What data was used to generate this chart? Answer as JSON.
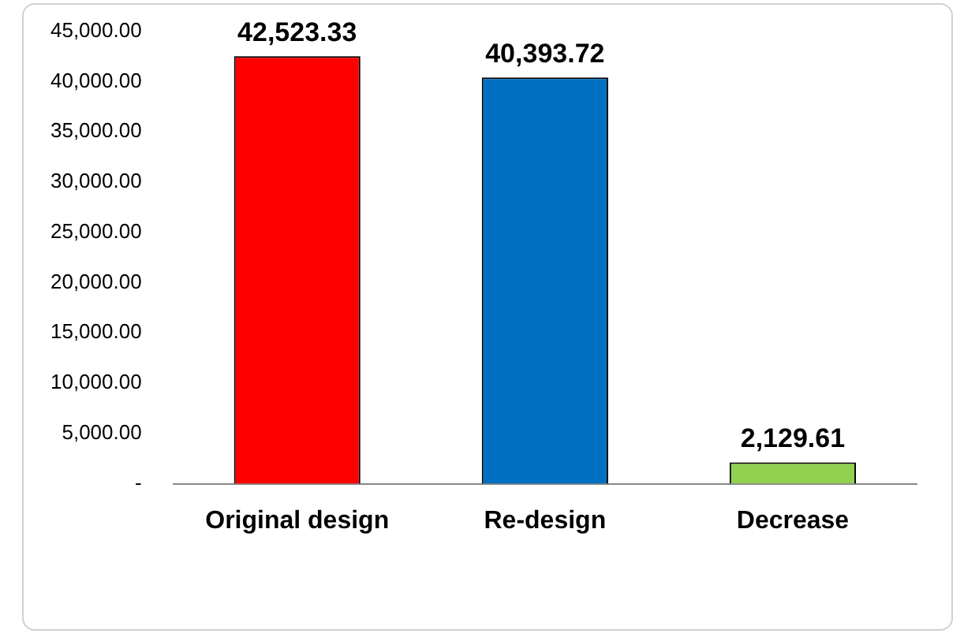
{
  "chart_data": {
    "type": "bar",
    "categories": [
      "Original design",
      "Re-design",
      "Decrease"
    ],
    "values": [
      42523.33,
      40393.72,
      2129.61
    ],
    "colors": [
      "#ff0000",
      "#0070c0",
      "#92d050"
    ],
    "value_labels": [
      "42,523.33",
      "40,393.72",
      "2,129.61"
    ],
    "ylim": [
      0,
      45000
    ],
    "yticks": [
      {
        "value": 0,
        "label": "-"
      },
      {
        "value": 5000,
        "label": "5,000.00"
      },
      {
        "value": 10000,
        "label": "10,000.00"
      },
      {
        "value": 15000,
        "label": "15,000.00"
      },
      {
        "value": 20000,
        "label": "20,000.00"
      },
      {
        "value": 25000,
        "label": "25,000.00"
      },
      {
        "value": 30000,
        "label": "30,000.00"
      },
      {
        "value": 35000,
        "label": "35,000.00"
      },
      {
        "value": 40000,
        "label": "40,000.00"
      },
      {
        "value": 45000,
        "label": "45,000.00"
      }
    ],
    "grid": false,
    "legend": false
  }
}
